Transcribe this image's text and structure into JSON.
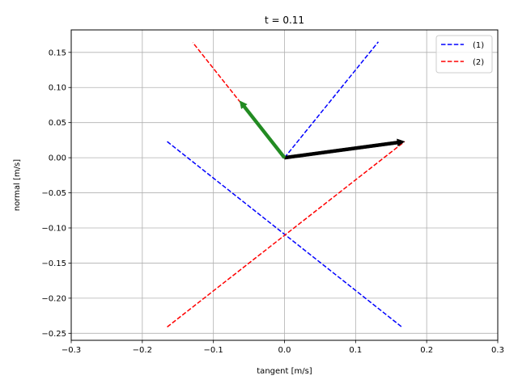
{
  "chart_data": {
    "type": "line",
    "title": "t = 0.11",
    "xlabel": "tangent [m/s]",
    "ylabel": "normal [m/s]",
    "xlim": [
      -0.3,
      0.3
    ],
    "ylim": [
      -0.26,
      0.182
    ],
    "xticks": [
      -0.3,
      -0.2,
      -0.1,
      0.0,
      0.1,
      0.2,
      0.3
    ],
    "xtick_labels": [
      "−0.3",
      "−0.2",
      "−0.1",
      "0.0",
      "0.1",
      "0.2",
      "0.3"
    ],
    "yticks": [
      -0.25,
      -0.2,
      -0.15,
      -0.1,
      -0.05,
      0.0,
      0.05,
      0.1,
      0.15
    ],
    "ytick_labels": [
      "−0.25",
      "−0.20",
      "−0.15",
      "−0.10",
      "−0.05",
      "0.00",
      "0.05",
      "0.10",
      "0.15"
    ],
    "grid": true,
    "legend_position": "top-right",
    "series": [
      {
        "name": "(1)",
        "color": "#0000ff",
        "style": "dashed",
        "segments": [
          [
            [
              0.0,
              0.0
            ],
            [
              0.132,
              0.165
            ]
          ],
          [
            [
              -0.165,
              0.023
            ],
            [
              0.165,
              -0.241
            ]
          ]
        ]
      },
      {
        "name": "(2)",
        "color": "#ff0000",
        "style": "dashed",
        "segments": [
          [
            [
              0.0,
              0.0
            ],
            [
              -0.129,
              0.164
            ]
          ],
          [
            [
              -0.165,
              -0.241
            ],
            [
              0.169,
              0.023
            ]
          ]
        ]
      }
    ],
    "arrows": [
      {
        "color": "#000000",
        "from": [
          0.0,
          0.0
        ],
        "to": [
          0.169,
          0.023
        ]
      },
      {
        "color": "#228b22",
        "from": [
          0.0,
          0.0
        ],
        "to": [
          -0.063,
          0.081
        ]
      }
    ]
  }
}
